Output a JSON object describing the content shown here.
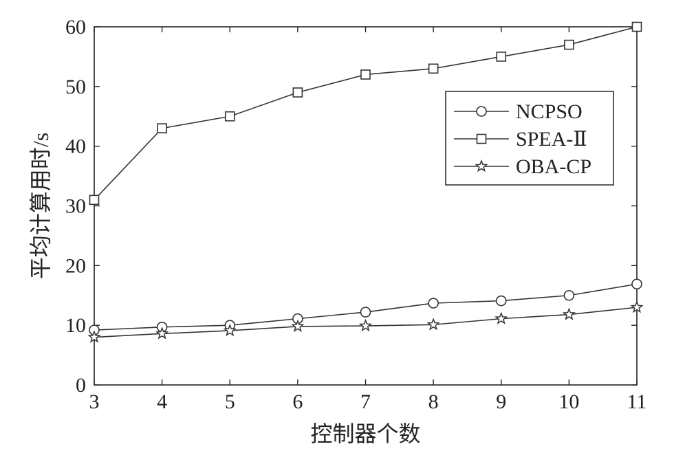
{
  "chart_data": {
    "type": "line",
    "xlabel": "控制器个数",
    "ylabel": "平均计算用时/s",
    "xlim": [
      3,
      11
    ],
    "ylim": [
      0,
      60
    ],
    "x": [
      3,
      4,
      5,
      6,
      7,
      8,
      9,
      10,
      11
    ],
    "x_ticks": [
      "3",
      "4",
      "5",
      "6",
      "7",
      "8",
      "9",
      "10",
      "11"
    ],
    "y_ticks": [
      "0",
      "10",
      "20",
      "30",
      "40",
      "50",
      "60"
    ],
    "grid": false,
    "legend_position": "top-right",
    "series": [
      {
        "name": "NCPSO",
        "marker": "circle",
        "values": [
          9.2,
          9.7,
          10.0,
          11.1,
          12.2,
          13.7,
          14.1,
          15.0,
          16.9
        ]
      },
      {
        "name": "SPEA-Ⅱ",
        "marker": "square",
        "values": [
          31,
          43,
          45,
          49,
          52,
          53,
          55,
          57,
          60
        ]
      },
      {
        "name": "OBA-CP",
        "marker": "star",
        "values": [
          8.0,
          8.6,
          9.1,
          9.8,
          9.9,
          10.1,
          11.1,
          11.8,
          13.0
        ]
      }
    ],
    "colors": {
      "line": "#333333",
      "marker_fill": "#ffffff",
      "axis": "#222222"
    }
  }
}
